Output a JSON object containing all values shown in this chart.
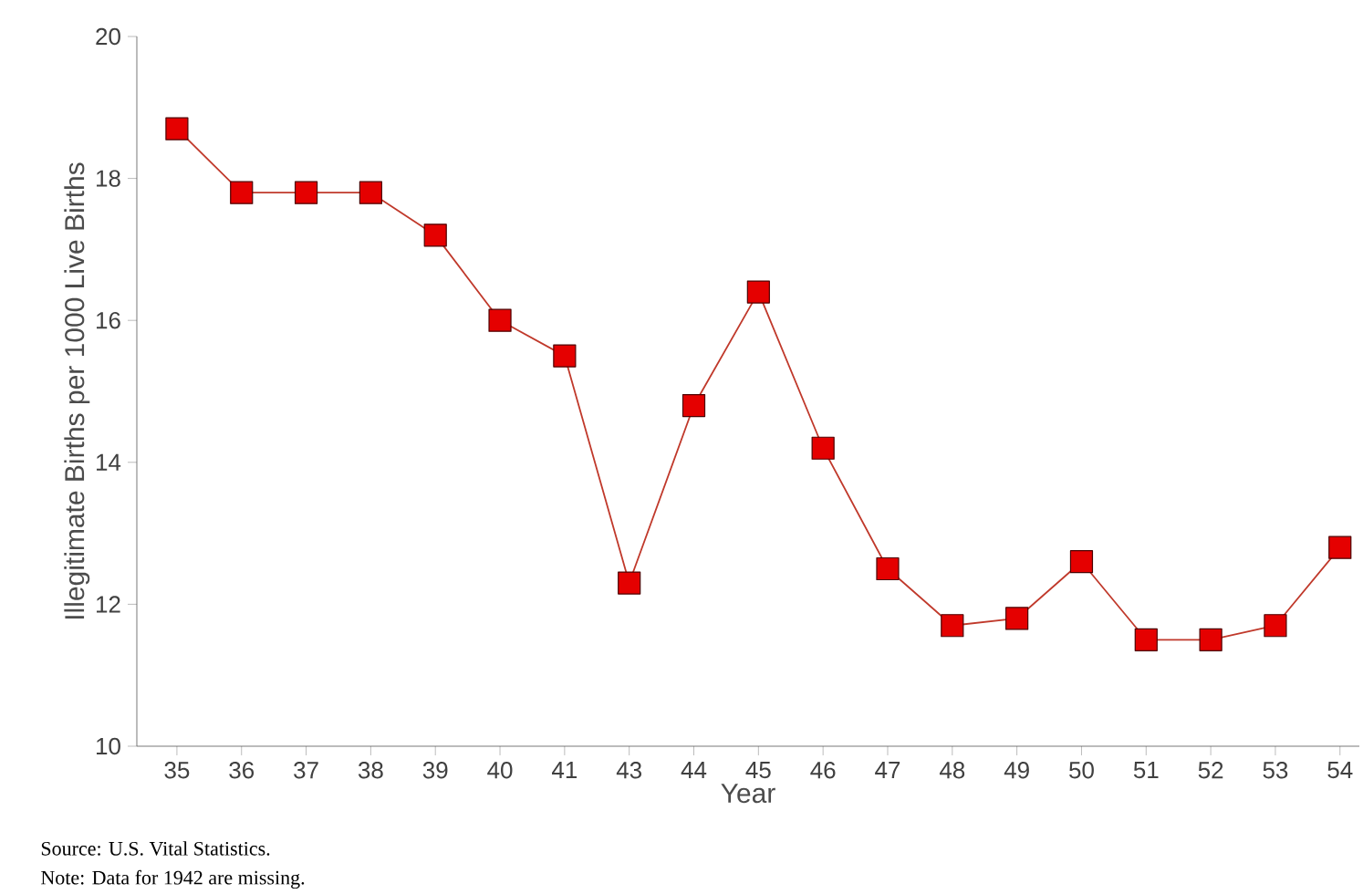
{
  "chart_data": {
    "type": "line",
    "xlabel": "Year",
    "ylabel": "Illegitimate Births per 1000 Live Births",
    "categories": [
      "35",
      "36",
      "37",
      "38",
      "39",
      "40",
      "41",
      "43",
      "44",
      "45",
      "46",
      "47",
      "48",
      "49",
      "50",
      "51",
      "52",
      "53",
      "54"
    ],
    "values": [
      18.7,
      17.8,
      17.8,
      17.8,
      17.2,
      16.0,
      15.5,
      12.3,
      14.8,
      16.4,
      14.2,
      12.5,
      11.7,
      11.8,
      12.6,
      11.5,
      11.5,
      11.7,
      12.8
    ],
    "color": "#c0392b",
    "marker": "square",
    "line_style": "solid",
    "ylim": [
      10,
      20
    ],
    "yticks": [
      10,
      12,
      14,
      16,
      18,
      20
    ],
    "annotations": [
      "Source: U.S. Vital Statistics.",
      "Note: Data for 1942 are missing."
    ]
  }
}
